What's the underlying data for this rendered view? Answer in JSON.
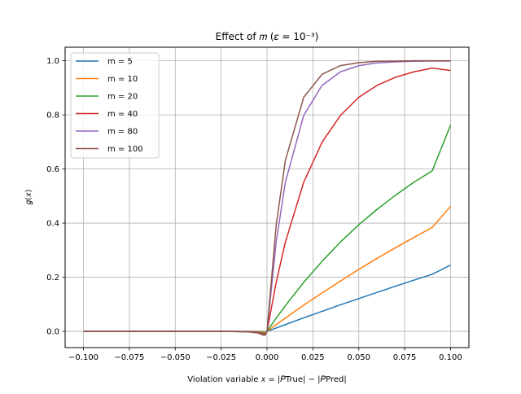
{
  "chart_data": {
    "type": "line",
    "title": "Effect of 𝑚 (𝜀 = 10⁻³)",
    "xlabel": "Violation variable 𝑥 = |𝑃True| − |𝑃Pred|",
    "ylabel": "𝑔(𝑥)",
    "xlim": [
      -0.11,
      0.11
    ],
    "ylim": [
      -0.06,
      1.05
    ],
    "grid": true,
    "legend_position": "top-left",
    "x_ticks": [
      -0.1,
      -0.075,
      -0.05,
      -0.025,
      0.0,
      0.025,
      0.05,
      0.075,
      0.1
    ],
    "x_tick_labels": [
      "−0.100",
      "−0.075",
      "−0.050",
      "−0.025",
      "0.000",
      "0.025",
      "0.050",
      "0.075",
      "0.100"
    ],
    "y_ticks": [
      0.0,
      0.2,
      0.4,
      0.6,
      0.8,
      1.0
    ],
    "y_tick_labels": [
      "0.0",
      "0.2",
      "0.4",
      "0.6",
      "0.8",
      "1.0"
    ],
    "x": [
      -0.1,
      -0.075,
      -0.05,
      -0.025,
      -0.01,
      -0.005,
      -0.002,
      -0.001,
      0.0,
      0.005,
      0.01,
      0.02,
      0.03,
      0.04,
      0.05,
      0.06,
      0.07,
      0.08,
      0.09,
      0.1
    ],
    "series": [
      {
        "name": "m = 5",
        "color": "#1f77b4",
        "values": [
          0.0,
          0.0,
          0.0,
          0.0,
          -0.0001,
          -0.0003,
          -0.001,
          -0.002,
          0.0,
          0.0125,
          0.025,
          0.05,
          0.074,
          0.098,
          0.121,
          0.144,
          0.167,
          0.189,
          0.211,
          0.245
        ]
      },
      {
        "name": "m = 10",
        "color": "#ff7f0e",
        "values": [
          0.0,
          0.0,
          0.0,
          0.0,
          -0.0002,
          -0.0008,
          -0.003,
          -0.004,
          0.0,
          0.025,
          0.049,
          0.097,
          0.142,
          0.186,
          0.229,
          0.27,
          0.309,
          0.347,
          0.384,
          0.462
        ]
      },
      {
        "name": "m = 20",
        "color": "#2ca02c",
        "values": [
          0.0,
          0.0,
          0.0,
          0.0,
          -0.0004,
          -0.0016,
          -0.006,
          -0.008,
          0.0,
          0.049,
          0.095,
          0.181,
          0.259,
          0.33,
          0.394,
          0.451,
          0.503,
          0.551,
          0.593,
          0.762
        ]
      },
      {
        "name": "m = 40",
        "color": "#d62728",
        "values": [
          0.0,
          0.0,
          0.0,
          0.0,
          -0.0008,
          -0.003,
          -0.009,
          -0.011,
          0.0,
          0.181,
          0.33,
          0.551,
          0.699,
          0.798,
          0.865,
          0.909,
          0.939,
          0.959,
          0.973,
          0.964
        ]
      },
      {
        "name": "m = 80",
        "color": "#9467bd",
        "values": [
          0.0,
          0.0,
          0.0,
          0.0,
          -0.0015,
          -0.005,
          -0.012,
          -0.013,
          0.0,
          0.33,
          0.551,
          0.798,
          0.909,
          0.959,
          0.982,
          0.992,
          0.996,
          0.998,
          0.999,
          0.999
        ]
      },
      {
        "name": "m = 100",
        "color": "#8c564b",
        "values": [
          0.0,
          0.0,
          0.0,
          0.0,
          -0.002,
          -0.006,
          -0.014,
          -0.014,
          0.0,
          0.393,
          0.632,
          0.865,
          0.95,
          0.982,
          0.993,
          0.998,
          0.999,
          1.0,
          1.0,
          1.0
        ]
      }
    ]
  }
}
